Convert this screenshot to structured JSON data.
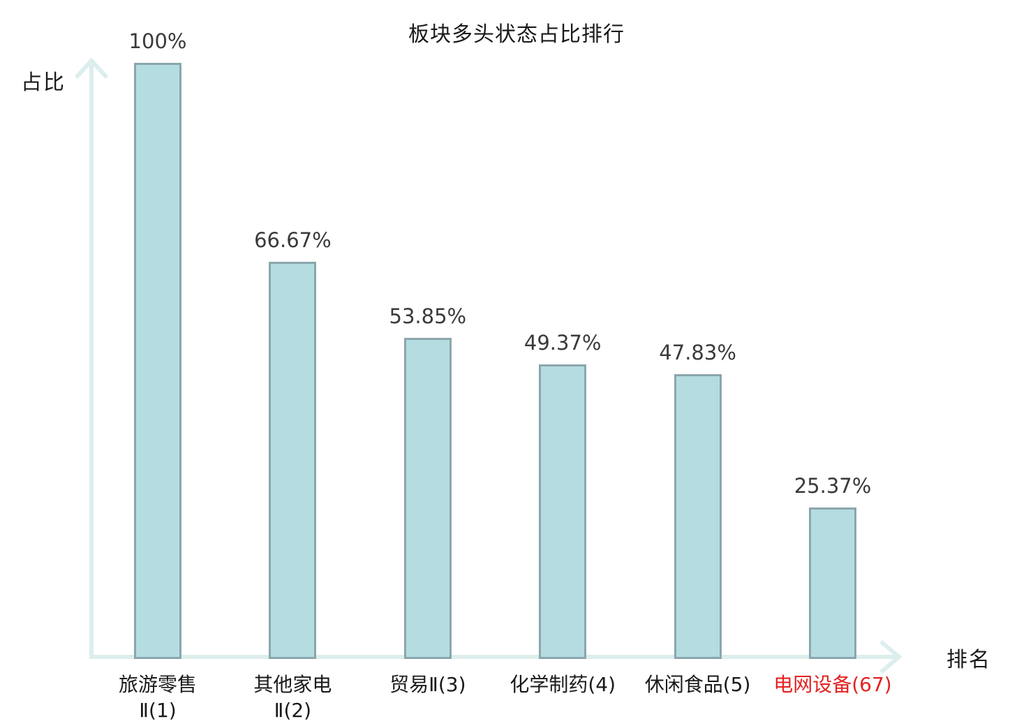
{
  "title": "板块多头状态占比排行",
  "axes": {
    "y_label": "占比",
    "x_label": "排名"
  },
  "colors": {
    "bar_fill": "#b5dde1",
    "bar_border": "#8ba6ad",
    "axis": "#dceeed",
    "value_label": "#3a3a3a",
    "category_label": "#1a1a1a",
    "highlight": "#e32222"
  },
  "chart_data": {
    "type": "bar",
    "title": "板块多头状态占比排行",
    "xlabel": "排名",
    "ylabel": "占比",
    "ylim": [
      0,
      100
    ],
    "grid": false,
    "legend": "none",
    "categories": [
      "旅游零售Ⅱ(1)",
      "其他家电Ⅱ(2)",
      "贸易Ⅱ(3)",
      "化学制药(4)",
      "休闲食品(5)",
      "电网设备(67)"
    ],
    "values": [
      100,
      66.67,
      53.85,
      49.37,
      47.83,
      25.37
    ],
    "bars": [
      {
        "category_lines": [
          "旅游零售",
          "Ⅱ(1)"
        ],
        "value": 100,
        "value_label": "100%",
        "highlighted": false
      },
      {
        "category_lines": [
          "其他家电",
          "Ⅱ(2)"
        ],
        "value": 66.67,
        "value_label": "66.67%",
        "highlighted": false
      },
      {
        "category_lines": [
          "贸易Ⅱ(3)"
        ],
        "value": 53.85,
        "value_label": "53.85%",
        "highlighted": false
      },
      {
        "category_lines": [
          "化学制药(4)"
        ],
        "value": 49.37,
        "value_label": "49.37%",
        "highlighted": false
      },
      {
        "category_lines": [
          "休闲食品(5)"
        ],
        "value": 47.83,
        "value_label": "47.83%",
        "highlighted": false
      },
      {
        "category_lines": [
          "电网设备(67)"
        ],
        "value": 25.37,
        "value_label": "25.37%",
        "highlighted": true
      }
    ]
  }
}
